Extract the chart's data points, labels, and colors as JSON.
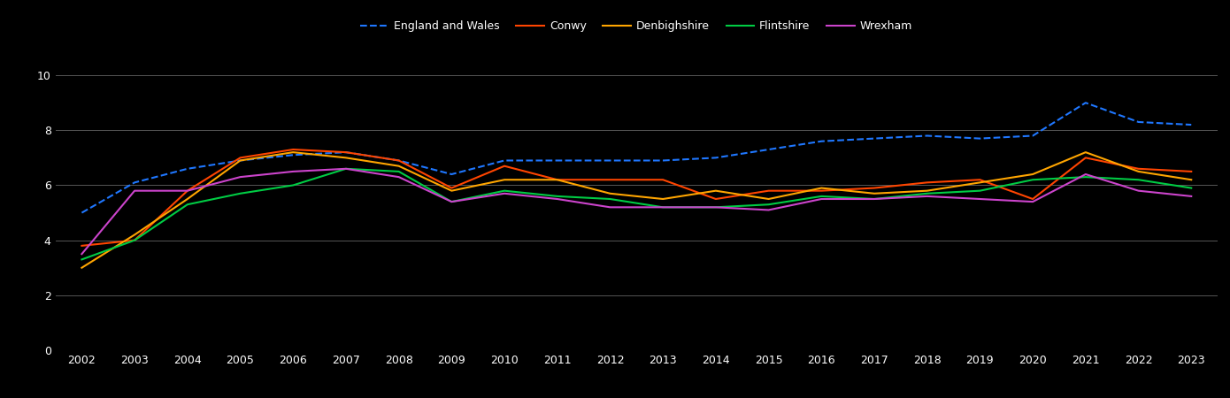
{
  "years": [
    2002,
    2003,
    2004,
    2005,
    2006,
    2007,
    2008,
    2009,
    2010,
    2011,
    2012,
    2013,
    2014,
    2015,
    2016,
    2017,
    2018,
    2019,
    2020,
    2021,
    2022,
    2023
  ],
  "england_wales": [
    5.0,
    6.1,
    6.6,
    6.9,
    7.1,
    7.2,
    6.9,
    6.4,
    6.9,
    6.9,
    6.9,
    6.9,
    7.0,
    7.3,
    7.6,
    7.7,
    7.8,
    7.7,
    7.8,
    9.0,
    8.3,
    8.2
  ],
  "conwy": [
    3.8,
    4.0,
    5.8,
    7.0,
    7.3,
    7.2,
    6.9,
    5.9,
    6.7,
    6.2,
    6.2,
    6.2,
    5.5,
    5.8,
    5.8,
    5.9,
    6.1,
    6.2,
    5.5,
    7.0,
    6.6,
    6.5
  ],
  "denbighshire": [
    3.0,
    4.2,
    5.5,
    6.9,
    7.2,
    7.0,
    6.7,
    5.8,
    6.2,
    6.2,
    5.7,
    5.5,
    5.8,
    5.5,
    5.9,
    5.7,
    5.8,
    6.1,
    6.4,
    7.2,
    6.5,
    6.2
  ],
  "flintshire": [
    3.3,
    4.0,
    5.3,
    5.7,
    6.0,
    6.6,
    6.5,
    5.4,
    5.8,
    5.6,
    5.5,
    5.2,
    5.2,
    5.3,
    5.6,
    5.5,
    5.7,
    5.8,
    6.2,
    6.3,
    6.2,
    5.9
  ],
  "wrexham": [
    3.5,
    5.8,
    5.8,
    6.3,
    6.5,
    6.6,
    6.3,
    5.4,
    5.7,
    5.5,
    5.2,
    5.2,
    5.2,
    5.1,
    5.5,
    5.5,
    5.6,
    5.5,
    5.4,
    6.4,
    5.8,
    5.6
  ],
  "england_wales_color": "#1f77ff",
  "conwy_color": "#ff4500",
  "denbighshire_color": "#ffa500",
  "flintshire_color": "#00cc44",
  "wrexham_color": "#cc44cc",
  "bg_color": "#000000",
  "text_color": "#ffffff",
  "grid_color": "#555555",
  "ylim": [
    0,
    11
  ],
  "yticks": [
    0,
    2,
    4,
    6,
    8,
    10
  ]
}
